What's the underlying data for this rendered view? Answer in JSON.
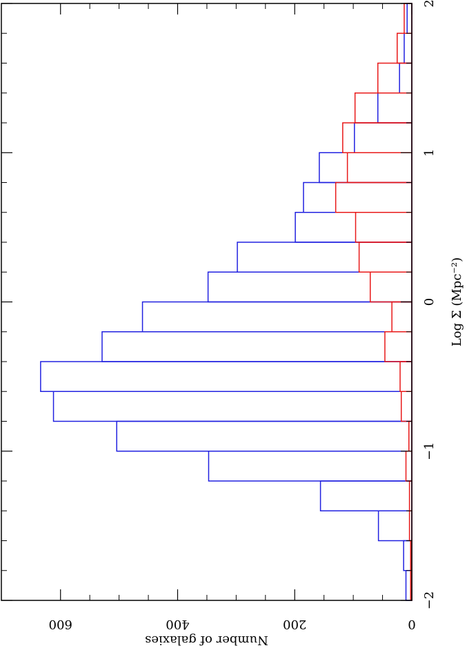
{
  "chart_data": {
    "type": "histogram",
    "xlabel": "Log Σ (Mpc⁻²)",
    "ylabel": "Number of galaxies",
    "bins": [
      -2,
      -1.8,
      -1.6,
      -1.4,
      -1.2,
      -1,
      -0.8,
      -0.6,
      -0.4,
      -0.2,
      0,
      0.2,
      0.4,
      0.6,
      0.8,
      1,
      1.2,
      1.4,
      1.6,
      1.8,
      2
    ],
    "series": [
      {
        "color": "#2020e0",
        "values": [
          10,
          14,
          57,
          156,
          347,
          504,
          612,
          634,
          529,
          460,
          348,
          298,
          199,
          185,
          158,
          98,
          58,
          21,
          13,
          8
        ]
      },
      {
        "color": "#e81818",
        "values": [
          2,
          2,
          4,
          4,
          10,
          5,
          18,
          20,
          46,
          34,
          71,
          90,
          96,
          130,
          110,
          118,
          97,
          58,
          25,
          13
        ]
      }
    ],
    "xlim": [
      -2,
      2
    ],
    "ylim": [
      0,
      701
    ],
    "xticks": [
      {
        "value": -2,
        "label": "−2"
      },
      {
        "value": -1,
        "label": "−1"
      },
      0,
      1,
      2
    ],
    "yticks": [
      0,
      200,
      400,
      600
    ],
    "rotation": -90
  }
}
